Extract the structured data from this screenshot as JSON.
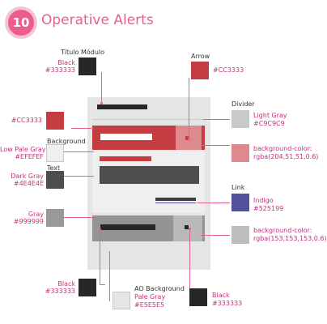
{
  "header": {
    "step": "10",
    "title": "Operative Alerts"
  },
  "annotations": {
    "titulo_modulo": {
      "label": "Título Módulo",
      "color_name": "Black",
      "color_value": "#333333"
    },
    "arrow": {
      "label": "Arrow",
      "color_value": "#CC3333"
    },
    "divider": {
      "label": "Divider",
      "color_name": "Light Gray",
      "color_value": "#C9C9C9"
    },
    "alert_red": {
      "color_value": "#CC3333"
    },
    "background": {
      "label": "Background",
      "color_name": "Low Pale Gray",
      "color_value": "#EFEFEF"
    },
    "highlight_overlay": {
      "line1": "background-color:",
      "line2": "rgba(204,51,51,0.6)"
    },
    "text": {
      "label": "Text",
      "color_name": "Dark Gray",
      "color_value": "#4E4E4E"
    },
    "link": {
      "label": "Link",
      "color_name": "Indigo",
      "color_value": "#525199"
    },
    "gray": {
      "color_name": "Gray",
      "color_value": "#999999"
    },
    "gray_overlay": {
      "line1": "background-color:",
      "line2": "rgba(153,153,153,0.6)"
    },
    "black_bottom_left": {
      "color_name": "Black",
      "color_value": "#333333"
    },
    "ao_background": {
      "label": "AO Background",
      "color_name": "Pale Gray",
      "color_value": "#E5E5E5"
    },
    "black_bottom_right": {
      "color_name": "Black",
      "color_value": "#333333"
    }
  },
  "swatches": {
    "black": "#252827",
    "red": "#c33d43",
    "light_gray": "#c8c9c9",
    "pale_pink": "#dc8a8d",
    "low_pale_gray": "#efefef",
    "dark_gray": "#4e4e4e",
    "indigo": "#525199",
    "gray": "#999999",
    "gray_overlay": "#bdbdbd",
    "pale_gray": "#e5e5e5"
  }
}
